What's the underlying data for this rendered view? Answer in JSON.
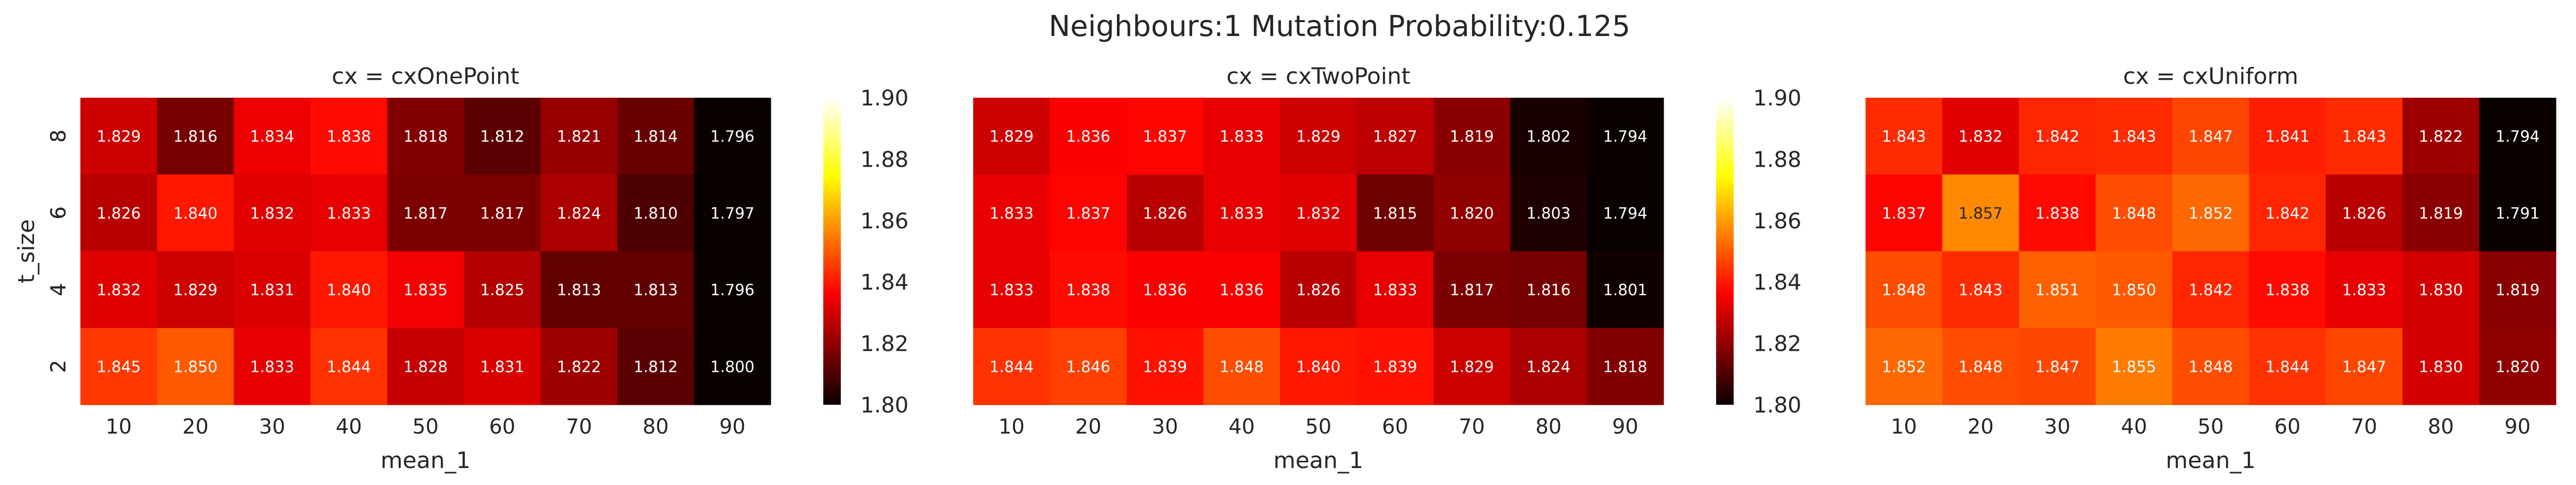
{
  "title": "Neighbours:1 Mutation Probability:0.125",
  "colormap": "hot",
  "chart_data": [
    {
      "type": "heatmap",
      "title": "cx = cxOnePoint",
      "xlabel": "mean_1",
      "ylabel": "t_size",
      "x": [
        "10",
        "20",
        "30",
        "40",
        "50",
        "60",
        "70",
        "80",
        "90"
      ],
      "y": [
        "8",
        "6",
        "4",
        "2"
      ],
      "values": [
        [
          1.829,
          1.816,
          1.834,
          1.838,
          1.818,
          1.812,
          1.821,
          1.814,
          1.796
        ],
        [
          1.826,
          1.84,
          1.832,
          1.833,
          1.817,
          1.817,
          1.824,
          1.81,
          1.797
        ],
        [
          1.832,
          1.829,
          1.831,
          1.84,
          1.835,
          1.825,
          1.813,
          1.813,
          1.796
        ],
        [
          1.845,
          1.85,
          1.833,
          1.844,
          1.828,
          1.831,
          1.822,
          1.812,
          1.8
        ]
      ],
      "vmin": 1.8,
      "vmax": 1.9,
      "colorbar_ticks": [
        "1.80",
        "1.82",
        "1.84",
        "1.86",
        "1.88",
        "1.90"
      ]
    },
    {
      "type": "heatmap",
      "title": "cx = cxTwoPoint",
      "xlabel": "mean_1",
      "ylabel": "",
      "x": [
        "10",
        "20",
        "30",
        "40",
        "50",
        "60",
        "70",
        "80",
        "90"
      ],
      "y": [
        "8",
        "6",
        "4",
        "2"
      ],
      "values": [
        [
          1.829,
          1.836,
          1.837,
          1.833,
          1.829,
          1.827,
          1.819,
          1.802,
          1.794
        ],
        [
          1.833,
          1.837,
          1.826,
          1.833,
          1.832,
          1.815,
          1.82,
          1.803,
          1.794
        ],
        [
          1.833,
          1.838,
          1.836,
          1.836,
          1.826,
          1.833,
          1.817,
          1.816,
          1.801
        ],
        [
          1.844,
          1.846,
          1.839,
          1.848,
          1.84,
          1.839,
          1.829,
          1.824,
          1.818
        ]
      ],
      "vmin": 1.8,
      "vmax": 1.9,
      "colorbar_ticks": [
        "1.80",
        "1.82",
        "1.84",
        "1.86",
        "1.88",
        "1.90"
      ]
    },
    {
      "type": "heatmap",
      "title": "cx = cxUniform",
      "xlabel": "mean_1",
      "ylabel": "",
      "x": [
        "10",
        "20",
        "30",
        "40",
        "50",
        "60",
        "70",
        "80",
        "90"
      ],
      "y": [
        "8",
        "6",
        "4",
        "2"
      ],
      "values": [
        [
          1.843,
          1.832,
          1.842,
          1.843,
          1.847,
          1.841,
          1.843,
          1.822,
          1.794
        ],
        [
          1.837,
          1.857,
          1.838,
          1.848,
          1.852,
          1.842,
          1.826,
          1.819,
          1.791
        ],
        [
          1.848,
          1.843,
          1.851,
          1.85,
          1.842,
          1.838,
          1.833,
          1.83,
          1.819
        ],
        [
          1.852,
          1.848,
          1.847,
          1.855,
          1.848,
          1.844,
          1.847,
          1.83,
          1.82
        ]
      ],
      "vmin": 1.8,
      "vmax": 1.9,
      "colorbar_ticks": [
        "1.80",
        "1.82",
        "1.84",
        "1.86",
        "1.88",
        "1.90"
      ]
    }
  ]
}
